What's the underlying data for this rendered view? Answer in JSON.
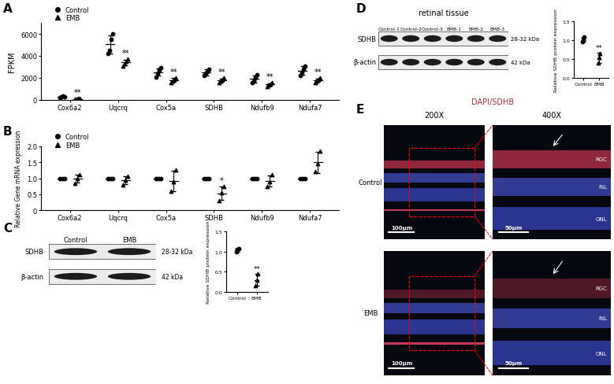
{
  "panel_labels": [
    "A",
    "B",
    "C",
    "D",
    "E"
  ],
  "chart_data": [
    {
      "type": "scatter",
      "y_label": "FPKM",
      "categories": [
        "Cox6a2",
        "Uqcrq",
        "Cox5a",
        "SDHB",
        "Ndufb9",
        "Ndufa7"
      ],
      "ylim": [
        0,
        7000
      ],
      "yticks": [
        0,
        2000,
        4000,
        6000
      ],
      "legend": "upper left",
      "series": [
        {
          "name": "Control",
          "marker": "circle",
          "color": "#000000",
          "values": [
            305,
            5050,
            2525,
            2500,
            1900,
            2650
          ],
          "errors": [
            40,
            800,
            340,
            260,
            310,
            390
          ],
          "points": [
            [
              250,
              300,
              350,
              320
            ],
            [
              4200,
              4500,
              5500,
              6000
            ],
            [
              2100,
              2400,
              2700,
              2900
            ],
            [
              2200,
              2400,
              2600,
              2800
            ],
            [
              1600,
              1700,
              2000,
              2300
            ],
            [
              2200,
              2500,
              2800,
              3100
            ]
          ],
          "annotations": [
            null,
            null,
            null,
            null,
            null,
            null
          ]
        },
        {
          "name": "EMB",
          "marker": "triangle",
          "color": "#000000",
          "values": [
            100,
            3400,
            1800,
            1790,
            1400,
            1790
          ],
          "errors": [
            20,
            260,
            170,
            170,
            130,
            170
          ],
          "points": [
            [
              80,
              100,
              120,
              110
            ],
            [
              3100,
              3300,
              3500,
              3700
            ],
            [
              1600,
              1750,
              1850,
              2000
            ],
            [
              1600,
              1700,
              1850,
              2000
            ],
            [
              1250,
              1350,
              1450,
              1550
            ],
            [
              1600,
              1700,
              1850,
              2000
            ]
          ],
          "annotations": [
            "**",
            "**",
            "**",
            "**",
            "**",
            "**"
          ]
        }
      ]
    },
    {
      "type": "scatter",
      "y_label": "Relative Gene mRNA expression",
      "categories": [
        "Cox6a2",
        "Uqcrq",
        "Cox5a",
        "SDHB",
        "Ndufb9",
        "Ndufa7"
      ],
      "ylim": [
        0,
        2.0
      ],
      "yticks": [
        0,
        0.5,
        1.0,
        1.5,
        2.0
      ],
      "legend": "upper left",
      "series": [
        {
          "name": "Control",
          "marker": "circle",
          "color": "#000000",
          "values": [
            1.0,
            1.0,
            1.0,
            1.0,
            1.0,
            1.0
          ],
          "errors": [
            0.0,
            0.0,
            0.0,
            0.0,
            0.0,
            0.0
          ],
          "points": [
            [
              1.0,
              1.0,
              1.0
            ],
            [
              1.0,
              1.0,
              1.0
            ],
            [
              1.0,
              1.0,
              1.0
            ],
            [
              1.0,
              1.0,
              1.0
            ],
            [
              1.0,
              1.0,
              1.0
            ],
            [
              1.0,
              1.0,
              1.0
            ]
          ],
          "annotations": [
            null,
            null,
            null,
            null,
            null,
            null
          ]
        },
        {
          "name": "EMB",
          "marker": "triangle",
          "color": "#000000",
          "values": [
            0.98,
            0.93,
            0.92,
            0.53,
            0.92,
            1.5
          ],
          "errors": [
            0.12,
            0.12,
            0.32,
            0.22,
            0.17,
            0.33
          ],
          "points": [
            [
              0.85,
              1.0,
              1.1
            ],
            [
              0.8,
              0.95,
              1.05
            ],
            [
              0.6,
              0.9,
              1.25
            ],
            [
              0.3,
              0.55,
              0.75
            ],
            [
              0.75,
              0.9,
              1.1
            ],
            [
              1.2,
              1.45,
              1.85
            ]
          ],
          "annotations": [
            null,
            null,
            null,
            "*",
            null,
            null
          ]
        }
      ]
    },
    {
      "type": "scatter",
      "y_label": "Relative SDHB protein expression",
      "categories": [
        "Control",
        "EMB"
      ],
      "ylim": [
        0,
        1.5
      ],
      "yticks": [
        0.0,
        0.5,
        1.0,
        1.5
      ],
      "series": [
        {
          "marker": "circle",
          "color": "#000000",
          "values": [
            1.04,
            null
          ],
          "errors": [
            0.04,
            null
          ],
          "points": [
            [
              1.0,
              1.05,
              1.08
            ],
            null
          ],
          "annotations": [
            null,
            null
          ]
        },
        {
          "marker": "triangle",
          "color": "#000000",
          "values": [
            null,
            0.3
          ],
          "errors": [
            null,
            0.15
          ],
          "points": [
            null,
            [
              0.15,
              0.3,
              0.45
            ]
          ],
          "annotations": [
            null,
            "**"
          ]
        }
      ]
    },
    {
      "type": "scatter",
      "y_label": "Relative SDHB protein expression",
      "categories": [
        "Control",
        "EMB"
      ],
      "ylim": [
        0,
        1.5
      ],
      "yticks": [
        0.0,
        0.5,
        1.0,
        1.5
      ],
      "series": [
        {
          "marker": "circle",
          "color": "#000000",
          "values": [
            1.01,
            null
          ],
          "errors": [
            0.06,
            null
          ],
          "points": [
            [
              0.95,
              1.0,
              1.08
            ],
            null
          ],
          "annotations": [
            null,
            null
          ]
        },
        {
          "marker": "triangle",
          "color": "#000000",
          "values": [
            null,
            0.53
          ],
          "errors": [
            null,
            0.13
          ],
          "points": [
            null,
            [
              0.4,
              0.55,
              0.65
            ]
          ],
          "annotations": [
            null,
            "**"
          ]
        }
      ]
    }
  ],
  "blots": [
    {
      "lanes": [
        "Control",
        "EMB"
      ],
      "rows": [
        {
          "name": "SDHB",
          "size": "28-32 kDa"
        },
        {
          "name": "β-actin",
          "size": "42 kDa"
        }
      ]
    },
    {
      "title": "retinal tissue",
      "lanes": [
        "Control-1",
        "Control-2",
        "Control-3",
        "EMB-1",
        "EMB-2",
        "EMB-3"
      ],
      "rows": [
        {
          "name": "SDHB",
          "size": "28-32 kDa"
        },
        {
          "name": "β-actin",
          "size": "42 kDa"
        }
      ]
    }
  ],
  "images": {
    "title": "DAPI/SDHB",
    "magnifications": [
      "200X",
      "400X"
    ],
    "groups": [
      "Control",
      "EMB"
    ],
    "scale_bars": [
      "100μm",
      "50μm"
    ],
    "layers": [
      "RGC",
      "INL",
      "ONL"
    ]
  }
}
